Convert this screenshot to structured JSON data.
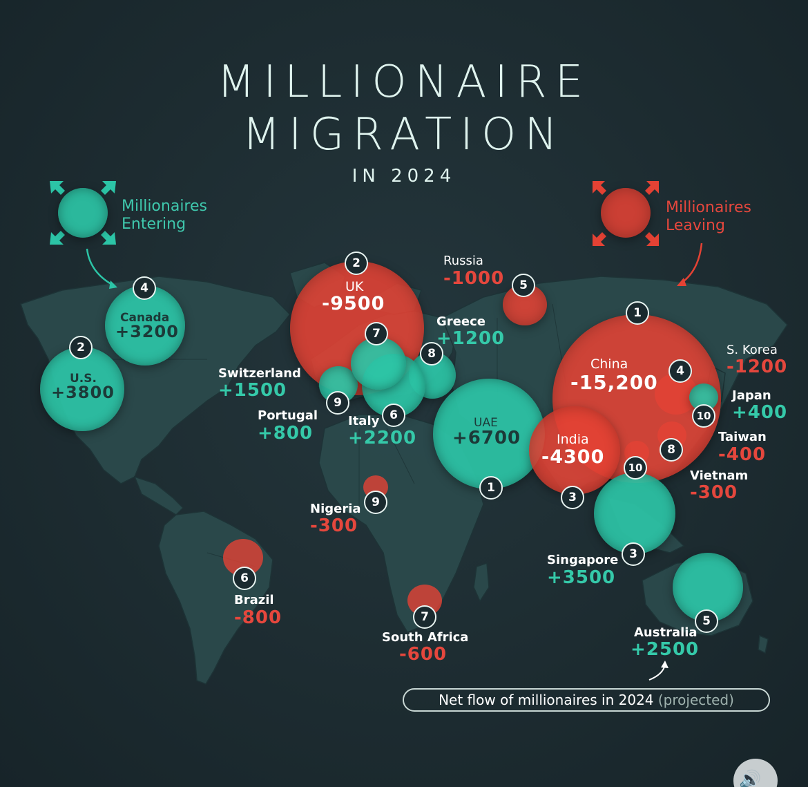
{
  "title": {
    "line1": "MILLIONAIRE",
    "line2": "MIGRATION",
    "subtitle": "IN 2024"
  },
  "legend": {
    "entering": {
      "line1": "Millionaires",
      "line2": "Entering",
      "color": "#2cc4a6",
      "icon": "inward-arrows-icon"
    },
    "leaving": {
      "line1": "Millionaires",
      "line2": "Leaving",
      "color": "#e44234",
      "icon": "outward-arrows-icon"
    }
  },
  "entering": [
    {
      "rank": "1",
      "country": "UAE",
      "value": "+6700"
    },
    {
      "rank": "2",
      "country": "U.S.",
      "value": "+3800"
    },
    {
      "rank": "3",
      "country": "Singapore",
      "value": "+3500"
    },
    {
      "rank": "4",
      "country": "Canada",
      "value": "+3200"
    },
    {
      "rank": "5",
      "country": "Australia",
      "value": "+2500"
    },
    {
      "rank": "6",
      "country": "Italy",
      "value": "+2200"
    },
    {
      "rank": "7",
      "country": "Switzerland",
      "value": "+1500"
    },
    {
      "rank": "8",
      "country": "Greece",
      "value": "+1200"
    },
    {
      "rank": "9",
      "country": "Portugal",
      "value": "+800"
    },
    {
      "rank": "10",
      "country": "Japan",
      "value": "+400"
    }
  ],
  "leaving": [
    {
      "rank": "1",
      "country": "China",
      "value": "-15,200"
    },
    {
      "rank": "2",
      "country": "UK",
      "value": "-9500"
    },
    {
      "rank": "3",
      "country": "India",
      "value": "-4300"
    },
    {
      "rank": "4",
      "country": "S. Korea",
      "value": "-1200"
    },
    {
      "rank": "5",
      "country": "Russia",
      "value": "-1000"
    },
    {
      "rank": "6",
      "country": "Brazil",
      "value": "-800"
    },
    {
      "rank": "7",
      "country": "South Africa",
      "value": "-600"
    },
    {
      "rank": "8",
      "country": "Taiwan",
      "value": "-400"
    },
    {
      "rank": "9",
      "country": "Nigeria",
      "value": "-300"
    },
    {
      "rank": "10",
      "country": "Vietnam",
      "value": "-300"
    }
  ],
  "footnote": {
    "main": "Net flow of millionaires in 2024",
    "muted": "(projected)"
  },
  "controls": {
    "speaker_icon": "speaker-icon"
  }
}
